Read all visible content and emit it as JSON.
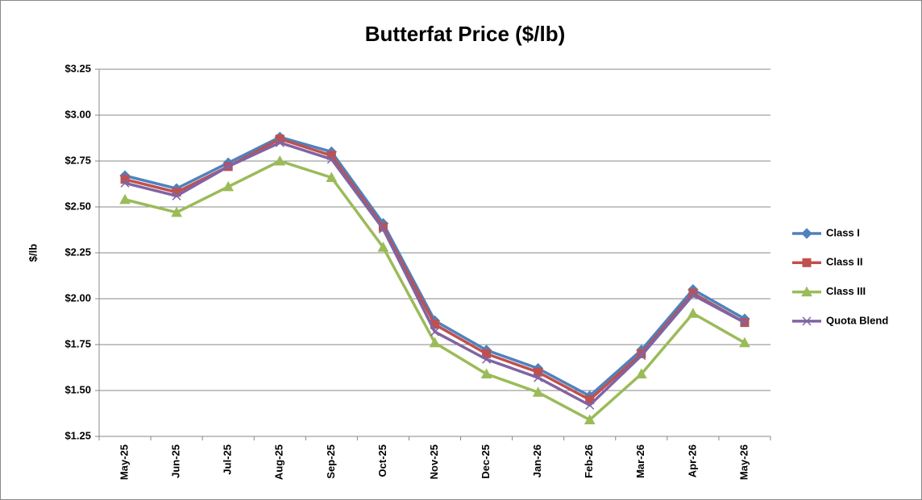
{
  "chart_data": {
    "type": "line",
    "title": "Butterfat Price ($/lb)",
    "y_label": "$/lb",
    "categories": [
      "May-25",
      "Jun-25",
      "Jul-25",
      "Aug-25",
      "Sep-25",
      "Oct-25",
      "Nov-25",
      "Dec-25",
      "Jan-26",
      "Feb-26",
      "Mar-26",
      "Apr-26",
      "May-26"
    ],
    "series": [
      {
        "name": "Class I",
        "color": "#4f81bd",
        "marker": "diamond",
        "values": [
          2.67,
          2.6,
          2.74,
          2.88,
          2.8,
          2.41,
          1.88,
          1.72,
          1.62,
          1.47,
          1.72,
          2.05,
          1.89
        ]
      },
      {
        "name": "Class II",
        "color": "#c0504d",
        "marker": "square",
        "values": [
          2.65,
          2.58,
          2.72,
          2.87,
          2.78,
          2.39,
          1.86,
          1.7,
          1.6,
          1.45,
          1.7,
          2.03,
          1.87
        ]
      },
      {
        "name": "Class III",
        "color": "#9bbb59",
        "marker": "triangle",
        "values": [
          2.54,
          2.47,
          2.61,
          2.75,
          2.66,
          2.28,
          1.76,
          1.59,
          1.49,
          1.34,
          1.59,
          1.92,
          1.76
        ]
      },
      {
        "name": "Quota Blend",
        "color": "#8064a2",
        "marker": "x",
        "values": [
          2.63,
          2.56,
          2.72,
          2.85,
          2.76,
          2.38,
          1.82,
          1.67,
          1.57,
          1.42,
          1.69,
          2.02,
          1.87
        ]
      }
    ],
    "ylim": [
      1.25,
      3.25
    ],
    "yticks": [
      {
        "value": 1.25,
        "label": "$1.25"
      },
      {
        "value": 1.5,
        "label": "$1.50"
      },
      {
        "value": 1.75,
        "label": "$1.75"
      },
      {
        "value": 2.0,
        "label": "$2.00"
      },
      {
        "value": 2.25,
        "label": "$2.25"
      },
      {
        "value": 2.5,
        "label": "$2.50"
      },
      {
        "value": 2.75,
        "label": "$2.75"
      },
      {
        "value": 3.0,
        "label": "$3.00"
      },
      {
        "value": 3.25,
        "label": "$3.25"
      }
    ],
    "grid": true,
    "legend": "right"
  }
}
